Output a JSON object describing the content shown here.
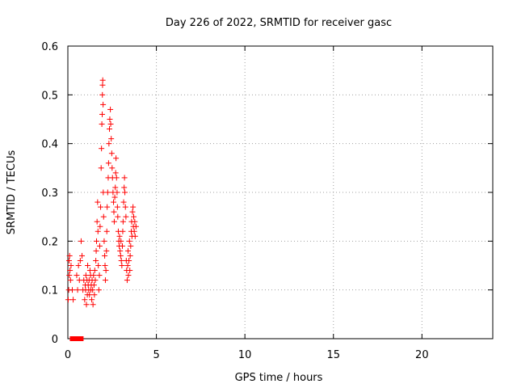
{
  "chart_data": {
    "type": "scatter",
    "title": "Day 226 of 2022, SRMTID for receiver gasc",
    "xlabel": "GPS time / hours",
    "ylabel": "SRMTID / TECUs",
    "xlim": [
      0,
      24
    ],
    "ylim": [
      0,
      0.6
    ],
    "xticks": [
      0,
      5,
      10,
      15,
      20
    ],
    "xtick_labels": [
      "0",
      "5",
      "10",
      "15",
      "20"
    ],
    "yticks": [
      0,
      0.1,
      0.2,
      0.3,
      0.4,
      0.5,
      0.6
    ],
    "ytick_labels": [
      "0",
      "0.1",
      "0.2",
      "0.3",
      "0.4",
      "0.5",
      "0.6"
    ],
    "grid": true,
    "marker_color": "#ff0000",
    "series": [
      {
        "marker": "plus",
        "points": [
          [
            0.02,
            0.08
          ],
          [
            0.05,
            0.1
          ],
          [
            0.07,
            0.16
          ],
          [
            0.08,
            0.13
          ],
          [
            0.1,
            0.17
          ],
          [
            0.12,
            0.14
          ],
          [
            0.15,
            0.12
          ],
          [
            0.18,
            0.15
          ],
          [
            0.25,
            0.1
          ],
          [
            0.3,
            0.08
          ],
          [
            0.5,
            0.13
          ],
          [
            0.55,
            0.1
          ],
          [
            0.6,
            0.15
          ],
          [
            0.65,
            0.12
          ],
          [
            0.7,
            0.16
          ],
          [
            0.75,
            0.2
          ],
          [
            0.8,
            0.17
          ],
          [
            0.85,
            0.1
          ],
          [
            0.9,
            0.12
          ],
          [
            0.95,
            0.08
          ],
          [
            0.98,
            0.11
          ],
          [
            1.0,
            0.1
          ],
          [
            1.02,
            0.13
          ],
          [
            1.05,
            0.07
          ],
          [
            1.08,
            0.12
          ],
          [
            1.1,
            0.09
          ],
          [
            1.12,
            0.15
          ],
          [
            1.15,
            0.11
          ],
          [
            1.18,
            0.1
          ],
          [
            1.2,
            0.12
          ],
          [
            1.22,
            0.09
          ],
          [
            1.25,
            0.14
          ],
          [
            1.28,
            0.13
          ],
          [
            1.3,
            0.1
          ],
          [
            1.32,
            0.11
          ],
          [
            1.35,
            0.08
          ],
          [
            1.37,
            0.12
          ],
          [
            1.4,
            0.1
          ],
          [
            1.42,
            0.07
          ],
          [
            1.45,
            0.13
          ],
          [
            1.48,
            0.11
          ],
          [
            1.5,
            0.09
          ],
          [
            1.52,
            0.14
          ],
          [
            1.55,
            0.12
          ],
          [
            1.58,
            0.16
          ],
          [
            1.6,
            0.18
          ],
          [
            1.62,
            0.2
          ],
          [
            1.65,
            0.24
          ],
          [
            1.68,
            0.28
          ],
          [
            1.7,
            0.22
          ],
          [
            1.72,
            0.15
          ],
          [
            1.75,
            0.1
          ],
          [
            1.78,
            0.13
          ],
          [
            1.8,
            0.19
          ],
          [
            1.82,
            0.23
          ],
          [
            1.85,
            0.27
          ],
          [
            1.88,
            0.35
          ],
          [
            1.9,
            0.39
          ],
          [
            1.92,
            0.44
          ],
          [
            1.94,
            0.46
          ],
          [
            1.95,
            0.5
          ],
          [
            1.96,
            0.52
          ],
          [
            1.97,
            0.53
          ],
          [
            1.99,
            0.48
          ],
          [
            2.0,
            0.3
          ],
          [
            2.02,
            0.25
          ],
          [
            2.05,
            0.2
          ],
          [
            2.08,
            0.17
          ],
          [
            2.1,
            0.15
          ],
          [
            2.12,
            0.12
          ],
          [
            2.15,
            0.14
          ],
          [
            2.18,
            0.18
          ],
          [
            2.2,
            0.22
          ],
          [
            2.22,
            0.27
          ],
          [
            2.25,
            0.3
          ],
          [
            2.28,
            0.33
          ],
          [
            2.3,
            0.36
          ],
          [
            2.32,
            0.4
          ],
          [
            2.35,
            0.43
          ],
          [
            2.37,
            0.45
          ],
          [
            2.4,
            0.47
          ],
          [
            2.42,
            0.44
          ],
          [
            2.45,
            0.41
          ],
          [
            2.48,
            0.38
          ],
          [
            2.5,
            0.35
          ],
          [
            2.52,
            0.33
          ],
          [
            2.55,
            0.3
          ],
          [
            2.58,
            0.28
          ],
          [
            2.6,
            0.26
          ],
          [
            2.62,
            0.24
          ],
          [
            2.65,
            0.29
          ],
          [
            2.68,
            0.31
          ],
          [
            2.7,
            0.34
          ],
          [
            2.72,
            0.37
          ],
          [
            2.75,
            0.33
          ],
          [
            2.78,
            0.3
          ],
          [
            2.8,
            0.27
          ],
          [
            2.82,
            0.25
          ],
          [
            2.85,
            0.22
          ],
          [
            2.88,
            0.2
          ],
          [
            2.9,
            0.19
          ],
          [
            2.92,
            0.21
          ],
          [
            2.95,
            0.18
          ],
          [
            2.98,
            0.17
          ],
          [
            3.0,
            0.2
          ],
          [
            3.02,
            0.16
          ],
          [
            3.05,
            0.15
          ],
          [
            3.08,
            0.19
          ],
          [
            3.1,
            0.22
          ],
          [
            3.12,
            0.24
          ],
          [
            3.15,
            0.28
          ],
          [
            3.18,
            0.31
          ],
          [
            3.2,
            0.33
          ],
          [
            3.22,
            0.3
          ],
          [
            3.25,
            0.27
          ],
          [
            3.28,
            0.25
          ],
          [
            3.3,
            0.16
          ],
          [
            3.32,
            0.14
          ],
          [
            3.35,
            0.12
          ],
          [
            3.38,
            0.15
          ],
          [
            3.4,
            0.18
          ],
          [
            3.42,
            0.13
          ],
          [
            3.45,
            0.16
          ],
          [
            3.48,
            0.2
          ],
          [
            3.5,
            0.14
          ],
          [
            3.52,
            0.17
          ],
          [
            3.55,
            0.19
          ],
          [
            3.58,
            0.22
          ],
          [
            3.6,
            0.24
          ],
          [
            3.62,
            0.21
          ],
          [
            3.65,
            0.26
          ],
          [
            3.68,
            0.27
          ],
          [
            3.7,
            0.23
          ],
          [
            3.72,
            0.25
          ],
          [
            3.75,
            0.22
          ],
          [
            3.78,
            0.24
          ],
          [
            3.8,
            0.21
          ],
          [
            3.85,
            0.23
          ]
        ]
      },
      {
        "marker": "square",
        "points": [
          [
            0.25,
            0
          ],
          [
            0.35,
            0
          ],
          [
            0.45,
            0
          ],
          [
            0.55,
            0
          ],
          [
            0.75,
            0
          ]
        ]
      }
    ]
  }
}
